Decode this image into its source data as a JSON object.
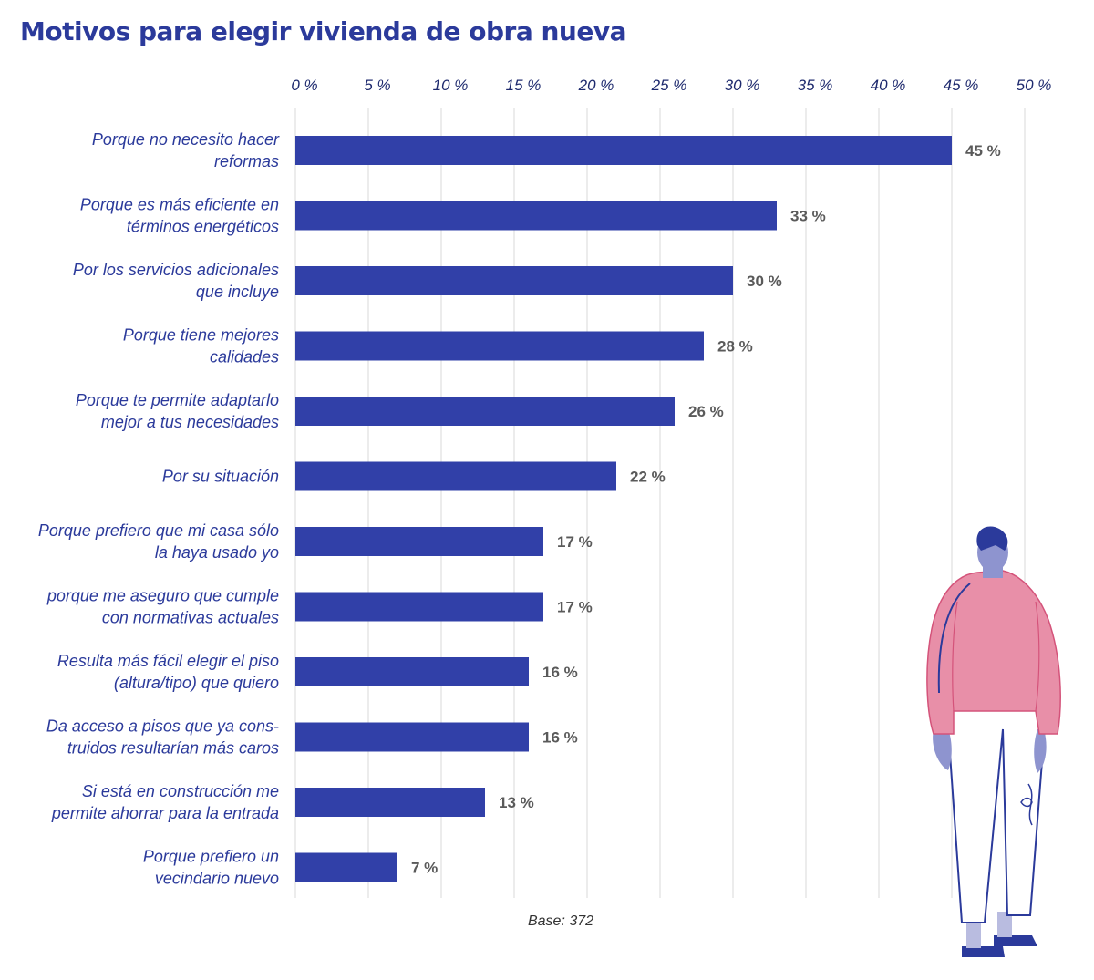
{
  "colors": {
    "bar": "#3140a8",
    "title": "#2b3a9b",
    "value_label": "#5a5a5a",
    "figure_sweater": "#e88fa8",
    "figure_outline": "#2b3a9b",
    "figure_skin": "#8e94cf"
  },
  "footnote": "Base: 372",
  "chart_data": {
    "type": "bar",
    "orientation": "horizontal",
    "title": "Motivos para elegir vivienda de obra nueva",
    "xlabel": "",
    "ylabel": "",
    "xlim": [
      0,
      50
    ],
    "tick_values": [
      0,
      5,
      10,
      15,
      20,
      25,
      30,
      35,
      40,
      45,
      50
    ],
    "tick_labels": [
      "0 %",
      "5 %",
      "10 %",
      "15 %",
      "20 %",
      "25 %",
      "30 %",
      "35 %",
      "40 %",
      "45 %",
      "50 %"
    ],
    "grid": true,
    "axis_position": "top",
    "categories": [
      [
        "Porque no necesito hacer",
        "reformas"
      ],
      [
        "Porque es más eficiente en",
        "términos energéticos"
      ],
      [
        "Por los servicios adicionales",
        "que incluye"
      ],
      [
        "Porque tiene mejores",
        "calidades"
      ],
      [
        "Porque te permite adaptarlo",
        "mejor a tus necesidades"
      ],
      [
        "Por su situación"
      ],
      [
        "Porque prefiero que mi casa sólo",
        "la haya usado yo"
      ],
      [
        "porque me aseguro que cumple",
        "con normativas actuales"
      ],
      [
        "Resulta más fácil elegir el piso",
        "(altura/tipo) que quiero"
      ],
      [
        "Da acceso a pisos que ya cons-",
        "truidos resultarían más caros"
      ],
      [
        "Si está en construcción me",
        "permite ahorrar para la entrada"
      ],
      [
        "Porque prefiero un",
        "vecindario nuevo"
      ]
    ],
    "values": [
      45,
      33,
      30,
      28,
      26,
      22,
      17,
      17,
      16,
      16,
      13,
      7
    ],
    "value_labels": [
      "45 %",
      "33 %",
      "30 %",
      "28 %",
      "26 %",
      "22 %",
      "17 %",
      "17 %",
      "16 %",
      "16 %",
      "13 %",
      "7 %"
    ]
  }
}
